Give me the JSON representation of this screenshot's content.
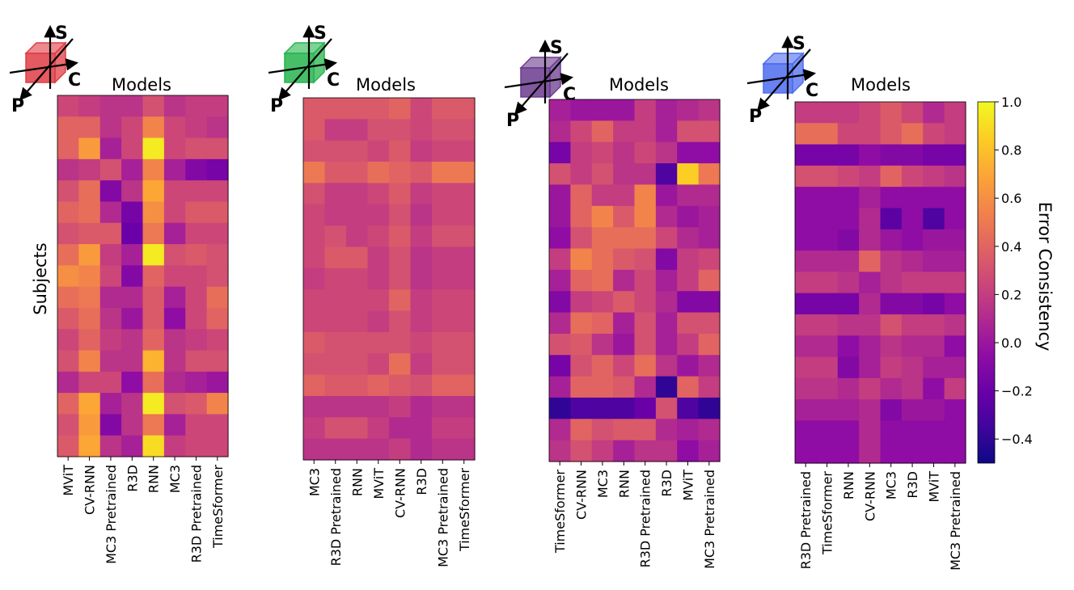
{
  "chart_data": {
    "type": "heatmap",
    "colormap": "plasma",
    "vmin": -0.5,
    "vmax": 1.0,
    "ylabel": "Subjects",
    "axis_letters": [
      "S",
      "C",
      "P"
    ],
    "colorbar": {
      "label": "Error Consistency",
      "ticks": [
        "1.0",
        "0.8",
        "0.6",
        "0.4",
        "0.2",
        "0.0",
        "−0.2",
        "−0.4"
      ],
      "tick_values": [
        1.0,
        0.8,
        0.6,
        0.4,
        0.2,
        0.0,
        -0.2,
        -0.4
      ]
    },
    "panels": [
      {
        "title": "Models",
        "cube_color": "#e03c45",
        "columns": [
          "MViT",
          "CV-RNN",
          "MC3 Pretrained",
          "R3D",
          "RNN",
          "MC3",
          "R3D Pretrained",
          "TimeSformer"
        ],
        "values": [
          [
            0.25,
            0.2,
            0.15,
            0.15,
            0.3,
            0.15,
            0.2,
            0.2
          ],
          [
            0.4,
            0.4,
            0.15,
            0.25,
            0.55,
            0.25,
            0.2,
            0.15
          ],
          [
            0.4,
            0.65,
            0.05,
            0.25,
            0.95,
            0.25,
            0.3,
            0.3
          ],
          [
            0.15,
            0.2,
            0.3,
            0.05,
            0.55,
            0.05,
            -0.1,
            -0.15
          ],
          [
            0.3,
            0.45,
            -0.1,
            0.15,
            0.7,
            0.25,
            0.25,
            0.25
          ],
          [
            0.4,
            0.45,
            0.1,
            -0.15,
            0.6,
            0.25,
            0.35,
            0.35
          ],
          [
            0.3,
            0.35,
            0.35,
            -0.2,
            0.5,
            0.05,
            0.25,
            0.25
          ],
          [
            0.45,
            0.65,
            0.2,
            0.05,
            0.95,
            0.3,
            0.35,
            0.3
          ],
          [
            0.6,
            0.55,
            0.25,
            -0.1,
            0.4,
            0.25,
            0.25,
            0.3
          ],
          [
            0.45,
            0.5,
            0.1,
            0.1,
            0.35,
            0.05,
            0.25,
            0.45
          ],
          [
            0.35,
            0.45,
            0.15,
            0.0,
            0.35,
            -0.05,
            0.25,
            0.4
          ],
          [
            0.25,
            0.4,
            0.2,
            0.15,
            0.4,
            0.15,
            0.2,
            0.25
          ],
          [
            0.3,
            0.55,
            0.15,
            0.15,
            0.75,
            0.15,
            0.3,
            0.3
          ],
          [
            0.1,
            0.25,
            0.25,
            -0.05,
            0.45,
            0.1,
            0.05,
            0.0
          ],
          [
            0.4,
            0.7,
            0.05,
            0.15,
            0.95,
            0.3,
            0.35,
            0.55
          ],
          [
            0.3,
            0.65,
            -0.1,
            0.15,
            0.5,
            0.05,
            0.25,
            0.25
          ],
          [
            0.35,
            0.7,
            0.15,
            0.05,
            0.9,
            0.2,
            0.25,
            0.25
          ]
        ]
      },
      {
        "title": "Models",
        "cube_color": "#27b44e",
        "columns": [
          "MC3",
          "R3D Pretrained",
          "RNN",
          "MViT",
          "CV-RNN",
          "R3D",
          "MC3 Pretrained",
          "TimeSformer"
        ],
        "values": [
          [
            0.35,
            0.35,
            0.35,
            0.35,
            0.4,
            0.25,
            0.35,
            0.35
          ],
          [
            0.35,
            0.2,
            0.2,
            0.3,
            0.3,
            0.25,
            0.3,
            0.3
          ],
          [
            0.3,
            0.3,
            0.3,
            0.25,
            0.35,
            0.2,
            0.25,
            0.25
          ],
          [
            0.5,
            0.35,
            0.35,
            0.45,
            0.4,
            0.35,
            0.5,
            0.5
          ],
          [
            0.3,
            0.2,
            0.2,
            0.25,
            0.35,
            0.2,
            0.25,
            0.25
          ],
          [
            0.25,
            0.2,
            0.2,
            0.2,
            0.3,
            0.15,
            0.25,
            0.25
          ],
          [
            0.25,
            0.3,
            0.2,
            0.25,
            0.35,
            0.2,
            0.3,
            0.3
          ],
          [
            0.25,
            0.35,
            0.35,
            0.2,
            0.3,
            0.15,
            0.2,
            0.2
          ],
          [
            0.2,
            0.25,
            0.25,
            0.2,
            0.3,
            0.15,
            0.2,
            0.2
          ],
          [
            0.25,
            0.25,
            0.25,
            0.25,
            0.4,
            0.2,
            0.25,
            0.25
          ],
          [
            0.25,
            0.25,
            0.25,
            0.2,
            0.3,
            0.2,
            0.25,
            0.25
          ],
          [
            0.35,
            0.3,
            0.3,
            0.3,
            0.3,
            0.25,
            0.3,
            0.3
          ],
          [
            0.3,
            0.3,
            0.3,
            0.25,
            0.45,
            0.2,
            0.3,
            0.3
          ],
          [
            0.4,
            0.35,
            0.35,
            0.4,
            0.35,
            0.3,
            0.4,
            0.4
          ],
          [
            0.15,
            0.15,
            0.15,
            0.15,
            0.2,
            0.1,
            0.15,
            0.15
          ],
          [
            0.2,
            0.3,
            0.3,
            0.2,
            0.1,
            0.1,
            0.2,
            0.2
          ],
          [
            0.15,
            0.15,
            0.15,
            0.15,
            0.2,
            0.1,
            0.15,
            0.15
          ]
        ]
      },
      {
        "title": "Models",
        "cube_color": "#6b3b8e",
        "columns": [
          "TimeSformer",
          "CV-RNN",
          "MC3",
          "RNN",
          "R3D Pretrained",
          "R3D",
          "MViT",
          "MC3 Pretrained"
        ],
        "values": [
          [
            0.05,
            0.0,
            0.0,
            0.0,
            0.2,
            0.05,
            0.1,
            0.15
          ],
          [
            0.1,
            0.25,
            0.4,
            0.2,
            0.2,
            0.05,
            0.3,
            0.3
          ],
          [
            -0.15,
            0.2,
            0.25,
            0.15,
            0.25,
            0.15,
            -0.05,
            -0.05
          ],
          [
            0.3,
            0.2,
            0.3,
            0.15,
            0.15,
            -0.3,
            0.85,
            0.5
          ],
          [
            0.0,
            0.4,
            0.2,
            0.2,
            0.55,
            0.0,
            0.1,
            0.1
          ],
          [
            0.0,
            0.4,
            0.55,
            0.35,
            0.55,
            0.1,
            0.0,
            0.05
          ],
          [
            -0.05,
            0.3,
            0.45,
            0.45,
            0.45,
            0.25,
            0.1,
            0.05
          ],
          [
            0.2,
            0.55,
            0.45,
            0.35,
            0.3,
            -0.1,
            0.2,
            0.25
          ],
          [
            0.05,
            0.4,
            0.45,
            0.1,
            0.25,
            0.05,
            0.2,
            0.4
          ],
          [
            -0.1,
            0.2,
            0.25,
            0.35,
            0.25,
            0.1,
            -0.1,
            -0.1
          ],
          [
            0.1,
            0.45,
            0.4,
            0.05,
            0.3,
            0.05,
            0.3,
            0.3
          ],
          [
            0.3,
            0.35,
            0.15,
            0.0,
            0.3,
            0.05,
            0.2,
            0.4
          ],
          [
            -0.15,
            0.3,
            0.4,
            0.25,
            0.45,
            0.15,
            0.0,
            0.1
          ],
          [
            0.05,
            0.4,
            0.4,
            0.35,
            0.1,
            -0.4,
            0.4,
            0.2
          ],
          [
            -0.4,
            -0.3,
            -0.3,
            -0.3,
            -0.2,
            0.3,
            -0.3,
            -0.4
          ],
          [
            0.1,
            0.4,
            0.3,
            0.35,
            0.35,
            0.1,
            0.05,
            0.1
          ],
          [
            0.15,
            0.3,
            0.2,
            0.05,
            0.15,
            0.15,
            -0.05,
            0.05
          ]
        ]
      },
      {
        "title": "Models",
        "cube_color": "#4d6cf0",
        "columns": [
          "R3D Pretrained",
          "TimeSformer",
          "RNN",
          "CV-RNN",
          "MC3",
          "R3D",
          "MViT",
          "MC3 Pretrained"
        ],
        "values": [
          [
            0.2,
            0.2,
            0.2,
            0.25,
            0.35,
            0.25,
            0.1,
            0.2
          ],
          [
            0.45,
            0.45,
            0.25,
            0.25,
            0.35,
            0.45,
            0.25,
            0.2
          ],
          [
            -0.15,
            -0.15,
            -0.15,
            -0.05,
            -0.1,
            -0.1,
            -0.15,
            -0.15
          ],
          [
            0.3,
            0.3,
            0.25,
            0.2,
            0.4,
            0.25,
            0.2,
            0.15
          ],
          [
            -0.05,
            -0.05,
            -0.05,
            0.05,
            -0.05,
            -0.05,
            -0.05,
            -0.05
          ],
          [
            -0.05,
            -0.05,
            -0.05,
            0.1,
            -0.25,
            -0.05,
            -0.3,
            -0.05
          ],
          [
            -0.05,
            -0.05,
            -0.1,
            0.1,
            0.0,
            -0.05,
            0.0,
            0.0
          ],
          [
            0.1,
            0.1,
            0.1,
            0.4,
            0.15,
            0.1,
            0.05,
            0.05
          ],
          [
            0.2,
            0.2,
            0.15,
            0.05,
            0.15,
            0.2,
            0.2,
            0.2
          ],
          [
            -0.15,
            -0.15,
            -0.15,
            0.1,
            -0.1,
            -0.1,
            -0.15,
            -0.05
          ],
          [
            0.2,
            0.2,
            0.15,
            0.15,
            0.3,
            0.2,
            0.2,
            0.15
          ],
          [
            0.1,
            0.1,
            -0.05,
            0.05,
            0.15,
            0.1,
            0.1,
            -0.05
          ],
          [
            0.2,
            0.2,
            -0.1,
            0.05,
            0.2,
            0.15,
            0.05,
            0.05
          ],
          [
            0.15,
            0.15,
            0.1,
            0.2,
            0.1,
            0.15,
            -0.05,
            0.2
          ],
          [
            0.05,
            0.05,
            0.05,
            0.1,
            -0.1,
            0.0,
            0.0,
            -0.05
          ],
          [
            -0.05,
            -0.05,
            -0.05,
            0.1,
            -0.05,
            -0.05,
            -0.05,
            -0.05
          ],
          [
            -0.05,
            -0.05,
            -0.05,
            0.1,
            -0.05,
            -0.05,
            -0.05,
            -0.05
          ]
        ]
      }
    ]
  }
}
